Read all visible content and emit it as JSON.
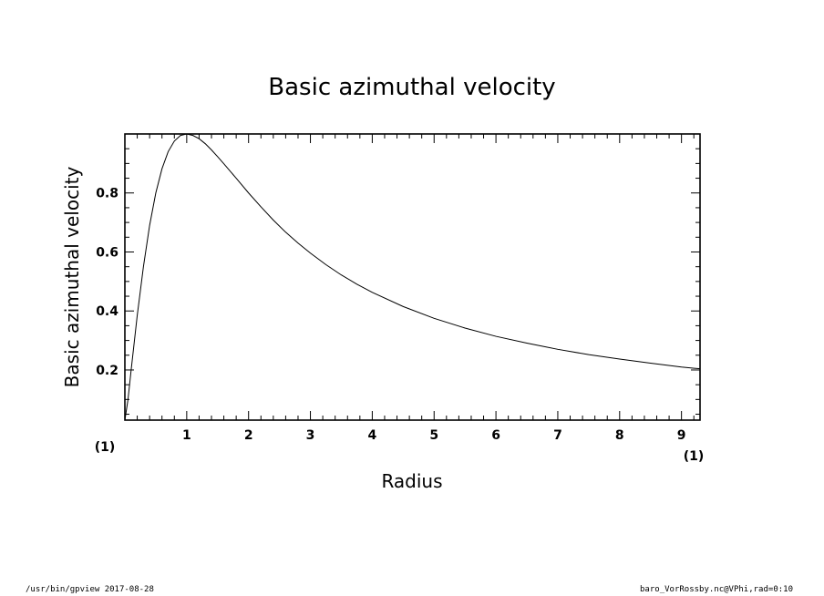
{
  "chart_data": {
    "type": "line",
    "title": "Basic azimuthal velocity",
    "xlabel": "Radius",
    "ylabel": "Basic azimuthal velocity",
    "x_unit": "(1)",
    "y_unit": "(1)",
    "xlim": [
      0,
      9.3
    ],
    "ylim": [
      0.03,
      1.0
    ],
    "x_ticks": [
      1,
      2,
      3,
      4,
      5,
      6,
      7,
      8,
      9
    ],
    "x_minor_step": 0.2,
    "y_ticks": [
      0.2,
      0.4,
      0.6,
      0.8
    ],
    "y_minor_step": 0.05,
    "grid": false,
    "series": [
      {
        "x": [
          0,
          0.05,
          0.1,
          0.2,
          0.3,
          0.4,
          0.5,
          0.6,
          0.7,
          0.8,
          0.9,
          1.0,
          1.1,
          1.2,
          1.3,
          1.4,
          1.5,
          1.6,
          1.8,
          2.0,
          2.2,
          2.4,
          2.6,
          2.8,
          3.0,
          3.25,
          3.5,
          3.75,
          4.0,
          4.5,
          5.0,
          5.5,
          6.0,
          6.5,
          7.0,
          7.5,
          8.0,
          8.5,
          9.0,
          9.3
        ],
        "y": [
          0,
          0.099,
          0.197,
          0.385,
          0.55,
          0.69,
          0.8,
          0.882,
          0.94,
          0.976,
          0.995,
          1.0,
          0.995,
          0.984,
          0.967,
          0.946,
          0.923,
          0.899,
          0.85,
          0.8,
          0.753,
          0.708,
          0.667,
          0.63,
          0.596,
          0.557,
          0.522,
          0.491,
          0.463,
          0.415,
          0.375,
          0.342,
          0.314,
          0.291,
          0.27,
          0.252,
          0.237,
          0.223,
          0.21,
          0.204
        ]
      }
    ]
  },
  "footer": {
    "left": "/usr/bin/gpview  2017-08-28",
    "right": "baro_VorRossby.nc@VPhi,rad=0:10"
  }
}
